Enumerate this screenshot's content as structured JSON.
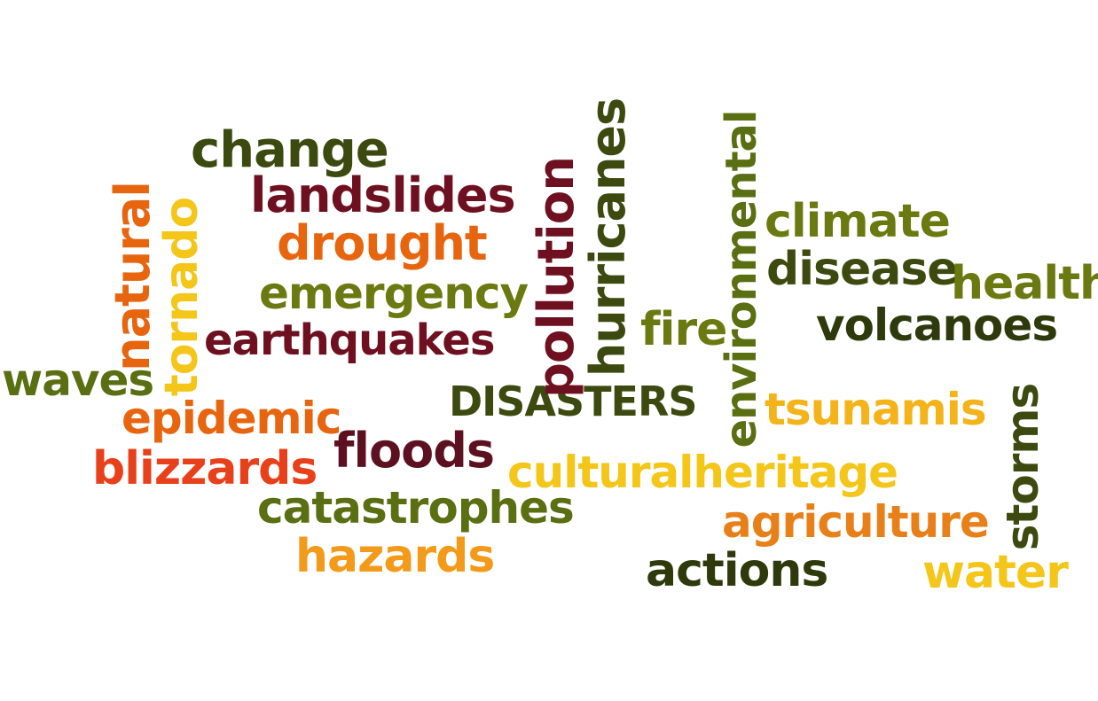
{
  "words": [
    {
      "id": "change",
      "text": "change",
      "color": "#3d4a0f"
    },
    {
      "id": "landslides",
      "text": "landslides",
      "color": "#6e1020"
    },
    {
      "id": "drought",
      "text": "drought",
      "color": "#e8650f"
    },
    {
      "id": "emergency",
      "text": "emergency",
      "color": "#6b7a10"
    },
    {
      "id": "earthquakes",
      "text": "earthquakes",
      "color": "#6e1020"
    },
    {
      "id": "natural",
      "text": "natural",
      "color": "#e8650f"
    },
    {
      "id": "tornado",
      "text": "tornado",
      "color": "#f3c619"
    },
    {
      "id": "waves",
      "text": "waves",
      "color": "#5a6e12"
    },
    {
      "id": "epidemic",
      "text": "epidemic",
      "color": "#e8650f"
    },
    {
      "id": "blizzards",
      "text": "blizzards",
      "color": "#e8401a"
    },
    {
      "id": "floods",
      "text": "floods",
      "color": "#5c1020"
    },
    {
      "id": "catastrophes",
      "text": "catastrophes",
      "color": "#5a6e12"
    },
    {
      "id": "hazards",
      "text": "hazards",
      "color": "#f39a1a"
    },
    {
      "id": "pollution",
      "text": "pollution",
      "color": "#6e1020"
    },
    {
      "id": "hurricanes",
      "text": "hurricanes",
      "color": "#3d4a0f"
    },
    {
      "id": "disasters",
      "text": "DISASTERS",
      "color": "#3d4a0f"
    },
    {
      "id": "fire",
      "text": "fire",
      "color": "#6b7a10"
    },
    {
      "id": "environmental",
      "text": "environmental",
      "color": "#5a6e12"
    },
    {
      "id": "culturalheritage",
      "text": "culturalheritage",
      "color": "#f3c619"
    },
    {
      "id": "actions",
      "text": "actions",
      "color": "#2f3a0c"
    },
    {
      "id": "climate",
      "text": "climate",
      "color": "#6b7a10"
    },
    {
      "id": "disease",
      "text": "disease",
      "color": "#3d4a0f"
    },
    {
      "id": "health",
      "text": "health",
      "color": "#6b7a10"
    },
    {
      "id": "volcanoes",
      "text": "volcanoes",
      "color": "#2f3a0c"
    },
    {
      "id": "tsunamis",
      "text": "tsunamis",
      "color": "#f3b319"
    },
    {
      "id": "agriculture",
      "text": "agriculture",
      "color": "#e8801a"
    },
    {
      "id": "storms",
      "text": "storms",
      "color": "#3d4a0f"
    },
    {
      "id": "water",
      "text": "water",
      "color": "#f3c619"
    }
  ]
}
